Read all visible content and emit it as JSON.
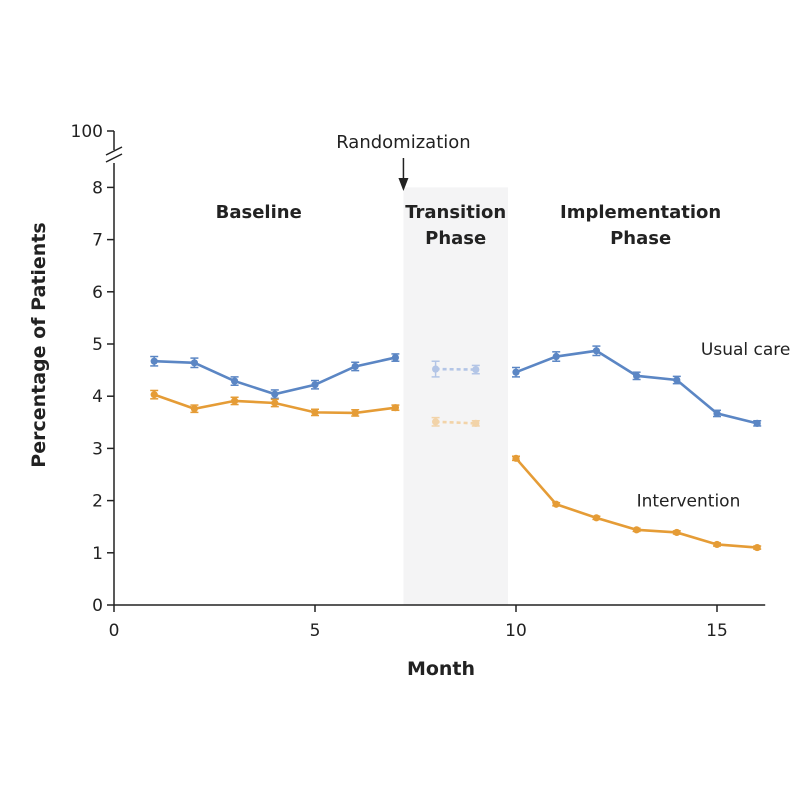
{
  "chart_data": {
    "type": "line",
    "xlabel": "Month",
    "ylabel": "Percentage of Patients",
    "xlim": [
      0,
      16
    ],
    "ylim": [
      0,
      8
    ],
    "y_break_top_label": "100",
    "x_ticks": [
      0,
      5,
      10,
      15
    ],
    "y_ticks": [
      0,
      1,
      2,
      3,
      4,
      5,
      6,
      7,
      8
    ],
    "grid": false,
    "annotation": {
      "text": "Randomization",
      "x": 7.2
    },
    "phases": [
      {
        "label_lines": [
          "Baseline"
        ],
        "x_center": 3.6
      },
      {
        "label_lines": [
          "Transition",
          "Phase"
        ],
        "x_center": 8.5,
        "shaded": true,
        "x_start": 7.2,
        "x_end": 9.8
      },
      {
        "label_lines": [
          "Implementation",
          "Phase"
        ],
        "x_center": 13.1
      }
    ],
    "series": [
      {
        "name": "Usual care",
        "color": "#5b86c4",
        "faded_color": "#b3c5e6",
        "label_x": 14.6,
        "label_y": 4.9,
        "segments": [
          {
            "style": "solid",
            "x": [
              1,
              2,
              3,
              4,
              5,
              6,
              7
            ],
            "y": [
              4.67,
              4.64,
              4.29,
              4.04,
              4.22,
              4.57,
              4.74
            ],
            "err": [
              0.09,
              0.09,
              0.08,
              0.08,
              0.08,
              0.08,
              0.07
            ]
          },
          {
            "style": "dashed",
            "x": [
              8,
              9
            ],
            "y": [
              4.52,
              4.51
            ],
            "err": [
              0.15,
              0.08
            ]
          },
          {
            "style": "solid",
            "x": [
              10,
              11,
              12,
              13,
              14,
              15,
              16
            ],
            "y": [
              4.46,
              4.76,
              4.87,
              4.39,
              4.31,
              3.67,
              3.48
            ],
            "err": [
              0.09,
              0.09,
              0.09,
              0.07,
              0.07,
              0.06,
              0.05
            ]
          }
        ]
      },
      {
        "name": "Intervention",
        "color": "#e59c36",
        "faded_color": "#f2d3a8",
        "label_x": 13.0,
        "label_y": 2.0,
        "segments": [
          {
            "style": "solid",
            "x": [
              1,
              2,
              3,
              4,
              5,
              6,
              7
            ],
            "y": [
              4.03,
              3.76,
              3.91,
              3.87,
              3.69,
              3.68,
              3.78
            ],
            "err": [
              0.08,
              0.07,
              0.07,
              0.07,
              0.06,
              0.06,
              0.05
            ]
          },
          {
            "style": "dashed",
            "x": [
              8,
              9
            ],
            "y": [
              3.51,
              3.48
            ],
            "err": [
              0.08,
              0.05
            ]
          },
          {
            "style": "solid",
            "x": [
              10,
              11,
              12,
              13,
              14,
              15,
              16
            ],
            "y": [
              2.81,
              1.93,
              1.67,
              1.44,
              1.39,
              1.16,
              1.1
            ],
            "err": [
              0.04,
              0.03,
              0.03,
              0.03,
              0.03,
              0.03,
              0.03
            ]
          }
        ]
      }
    ]
  }
}
